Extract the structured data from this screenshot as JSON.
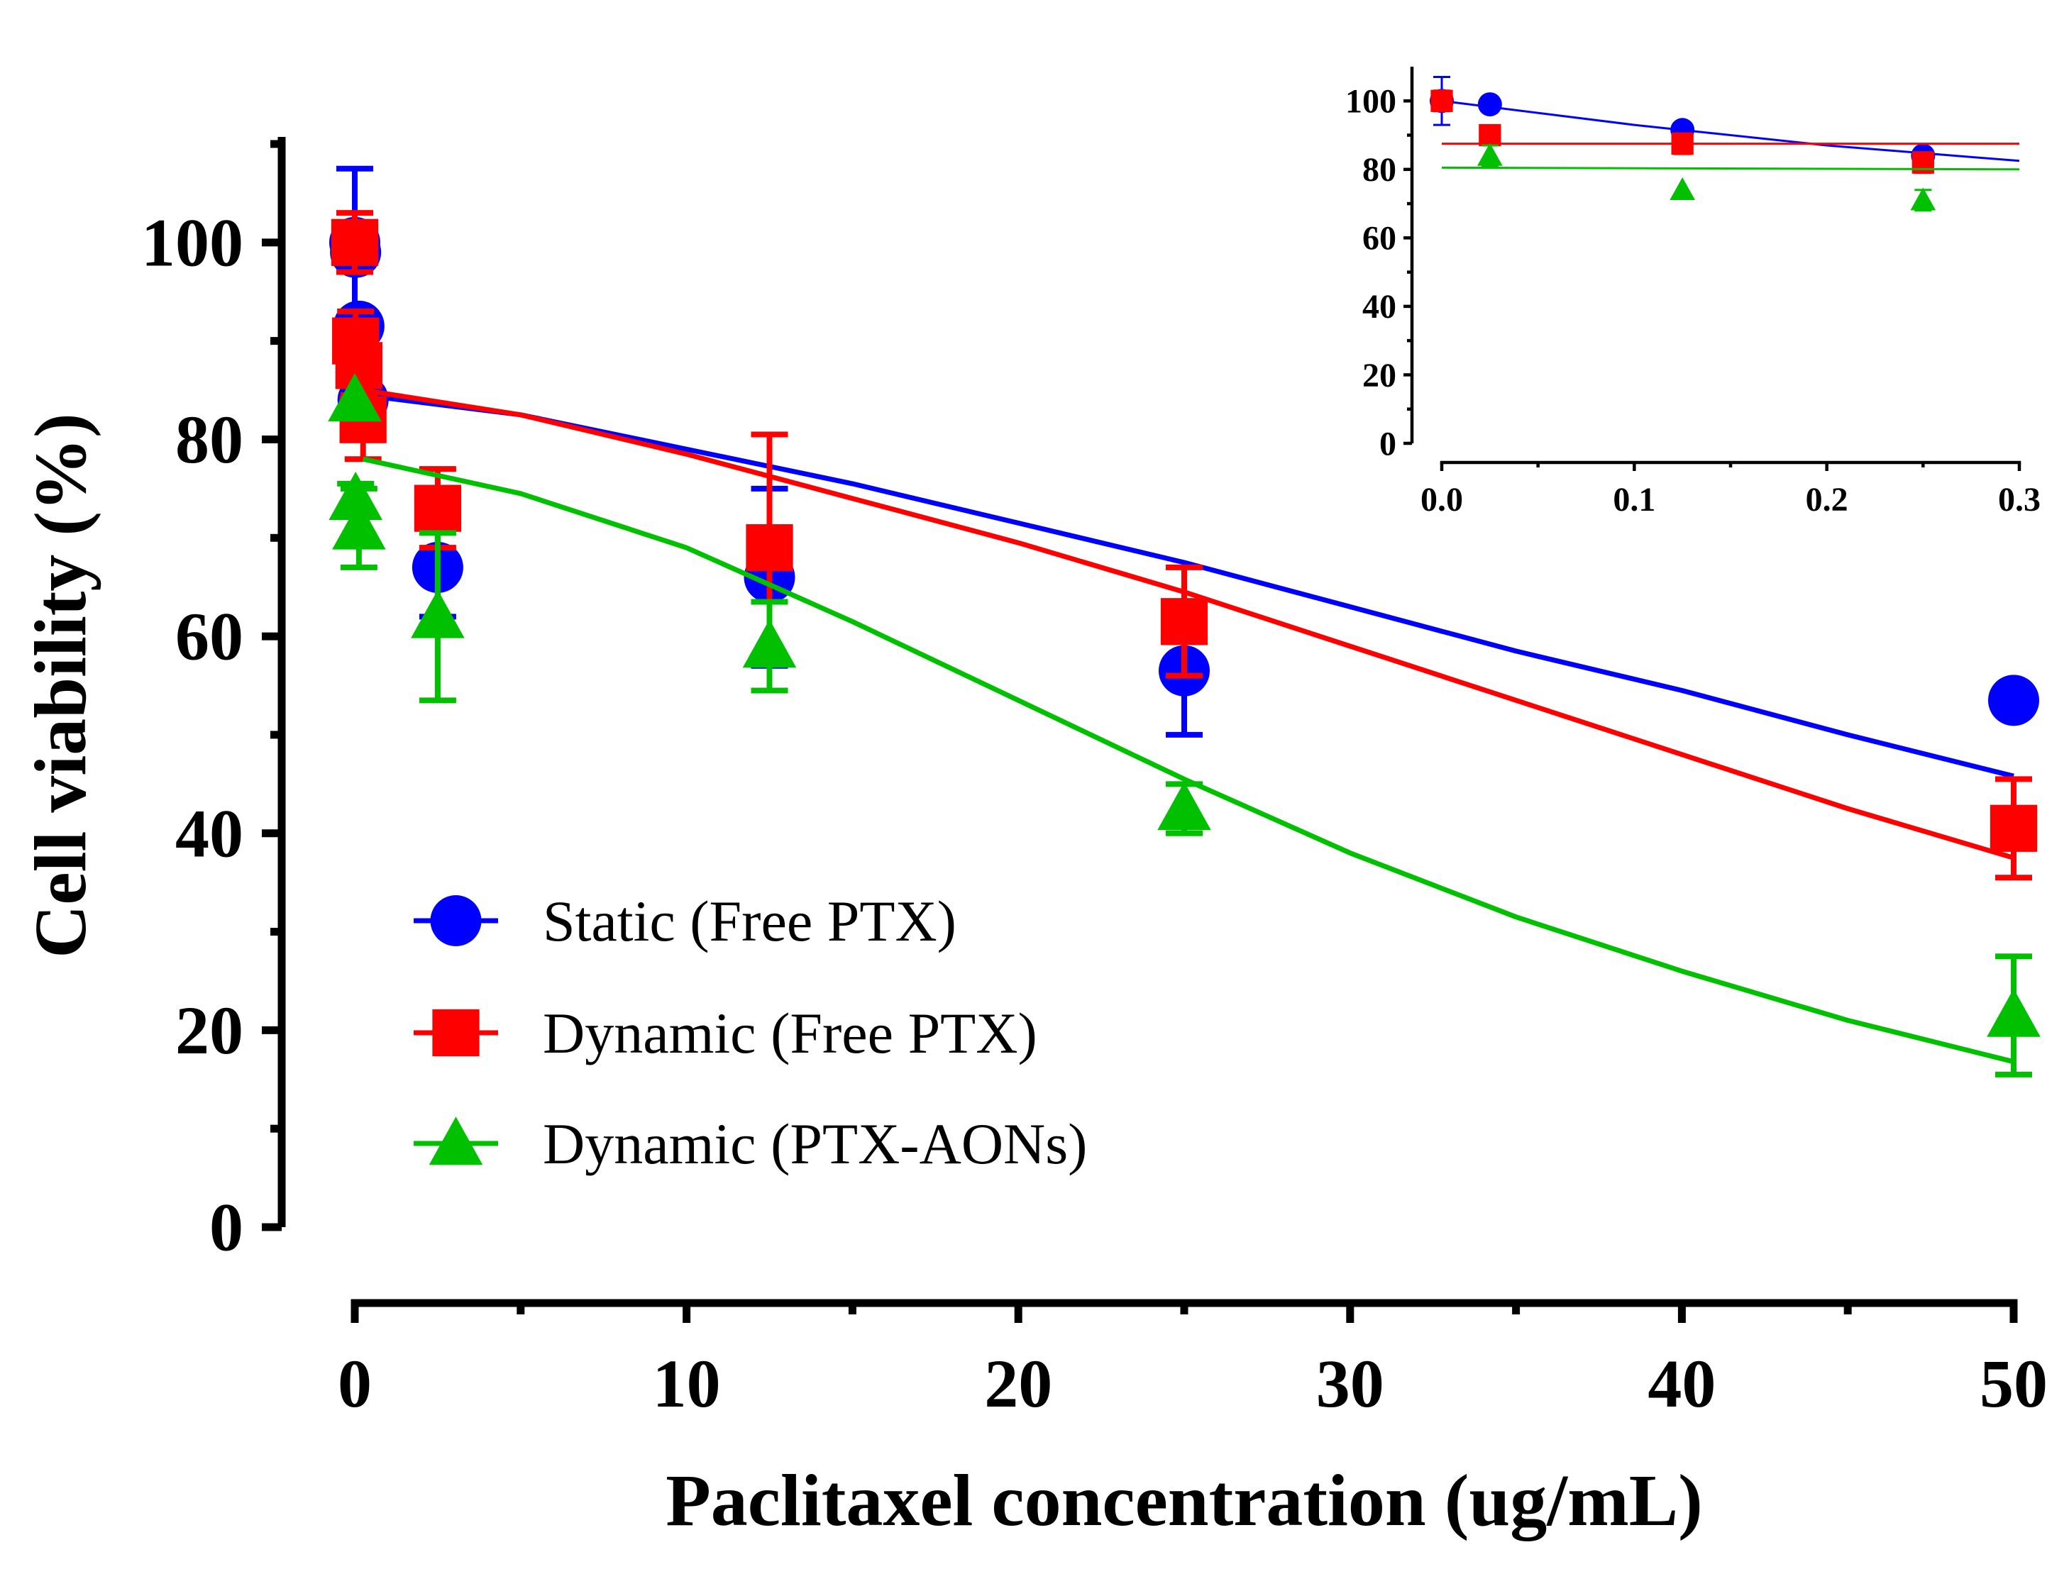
{
  "chart_data": [
    {
      "id": "main",
      "type": "scatter",
      "title": "",
      "xlabel": "Paclitaxel concentration (ug/mL)",
      "ylabel": "Cell viability (%)",
      "xlim": [
        0,
        50
      ],
      "ylim": [
        0,
        110
      ],
      "xticks": [
        0,
        10,
        20,
        30,
        40,
        50
      ],
      "yticks": [
        0,
        20,
        40,
        60,
        80,
        100
      ],
      "grid": false,
      "legend": "bottom-left",
      "series": [
        {
          "name": "Static (Free PTX)",
          "color": "#0000ff",
          "marker": "circle",
          "points": [
            {
              "x": 0,
              "y": 100,
              "err": 7.5
            },
            {
              "x": 0.025,
              "y": 99,
              "err": 0
            },
            {
              "x": 0.125,
              "y": 91.5,
              "err": 0
            },
            {
              "x": 0.25,
              "y": 84,
              "err": 0
            },
            {
              "x": 2.5,
              "y": 67,
              "err": 5
            },
            {
              "x": 12.5,
              "y": 66,
              "err": 9
            },
            {
              "x": 25,
              "y": 56.5,
              "err": 6.5
            },
            {
              "x": 50,
              "y": 53.5,
              "err": 0
            }
          ],
          "fit": [
            [
              0.25,
              84.5
            ],
            [
              5,
              82.5
            ],
            [
              10,
              79
            ],
            [
              15,
              75.5
            ],
            [
              20,
              71.5
            ],
            [
              25,
              67.5
            ],
            [
              30,
              63
            ],
            [
              35,
              58.5
            ],
            [
              40,
              54.5
            ],
            [
              45,
              50
            ],
            [
              50,
              45.8
            ]
          ]
        },
        {
          "name": "Dynamic (Free PTX)",
          "color": "#ff0000",
          "marker": "square",
          "points": [
            {
              "x": 0,
              "y": 100,
              "err": 3
            },
            {
              "x": 0.025,
              "y": 90,
              "err": 3
            },
            {
              "x": 0.125,
              "y": 87.5,
              "err": 3
            },
            {
              "x": 0.25,
              "y": 82,
              "err": 4
            },
            {
              "x": 2.5,
              "y": 73,
              "err": 4
            },
            {
              "x": 12.5,
              "y": 69,
              "err": 11.5
            },
            {
              "x": 25,
              "y": 61.5,
              "err": 5.5
            },
            {
              "x": 50,
              "y": 40.5,
              "err": 5
            }
          ],
          "fit": [
            [
              0.25,
              85
            ],
            [
              5,
              82.5
            ],
            [
              10,
              78.5
            ],
            [
              15,
              74
            ],
            [
              20,
              69.5
            ],
            [
              25,
              64.5
            ],
            [
              30,
              59
            ],
            [
              35,
              53.5
            ],
            [
              40,
              48
            ],
            [
              45,
              42.5
            ],
            [
              50,
              37.5
            ]
          ]
        },
        {
          "name": "Dynamic (PTX-AONs)",
          "color": "#00c000",
          "marker": "triangle",
          "points": [
            {
              "x": 0,
              "y": 84,
              "err": 0
            },
            {
              "x": 0.025,
              "y": 74,
              "err": 1.5
            },
            {
              "x": 0.125,
              "y": 71,
              "err": 4
            },
            {
              "x": 2.5,
              "y": 62,
              "err": 8.5
            },
            {
              "x": 12.5,
              "y": 59,
              "err": 4.5
            },
            {
              "x": 25,
              "y": 42.5,
              "err": 2.5
            },
            {
              "x": 50,
              "y": 21.5,
              "err": 6
            }
          ],
          "fit": [
            [
              0.25,
              78
            ],
            [
              5,
              74.5
            ],
            [
              10,
              69
            ],
            [
              15,
              61.5
            ],
            [
              20,
              53.5
            ],
            [
              25,
              45.5
            ],
            [
              30,
              38
            ],
            [
              35,
              31.5
            ],
            [
              40,
              26
            ],
            [
              45,
              21
            ],
            [
              50,
              16.8
            ]
          ]
        }
      ]
    },
    {
      "id": "inset",
      "type": "scatter",
      "title": "",
      "xlabel": "",
      "ylabel": "",
      "xlim": [
        0,
        0.3
      ],
      "ylim": [
        0,
        110
      ],
      "xticks": [
        0.0,
        0.1,
        0.2,
        0.3
      ],
      "xtick_labels": [
        "0.0",
        "0.1",
        "0.2",
        "0.3"
      ],
      "yticks": [
        0,
        20,
        40,
        60,
        80,
        100
      ],
      "grid": false,
      "series": [
        {
          "name": "Static (Free PTX)",
          "color": "#0000ff",
          "marker": "circle",
          "points": [
            {
              "x": 0,
              "y": 100,
              "err": 7
            },
            {
              "x": 0.025,
              "y": 99,
              "err": 0
            },
            {
              "x": 0.125,
              "y": 91.5,
              "err": 0
            },
            {
              "x": 0.25,
              "y": 84,
              "err": 0
            }
          ],
          "fit": [
            [
              0,
              100
            ],
            [
              0.1,
              93
            ],
            [
              0.2,
              87
            ],
            [
              0.3,
              82.5
            ]
          ]
        },
        {
          "name": "Dynamic (Free PTX)",
          "color": "#ff0000",
          "marker": "square",
          "points": [
            {
              "x": 0,
              "y": 100,
              "err": 3
            },
            {
              "x": 0.025,
              "y": 90,
              "err": 2
            },
            {
              "x": 0.125,
              "y": 87.5,
              "err": 3
            },
            {
              "x": 0.25,
              "y": 82,
              "err": 3
            }
          ],
          "fit": [
            [
              0,
              87.5
            ],
            [
              0.3,
              87.5
            ]
          ]
        },
        {
          "name": "Dynamic (PTX-AONs)",
          "color": "#00c000",
          "marker": "triangle",
          "points": [
            {
              "x": 0.025,
              "y": 84,
              "err": 3
            },
            {
              "x": 0.125,
              "y": 74,
              "err": 0
            },
            {
              "x": 0.25,
              "y": 71,
              "err": 3
            }
          ],
          "fit": [
            [
              0,
              80.5
            ],
            [
              0.3,
              80
            ]
          ]
        }
      ]
    }
  ]
}
